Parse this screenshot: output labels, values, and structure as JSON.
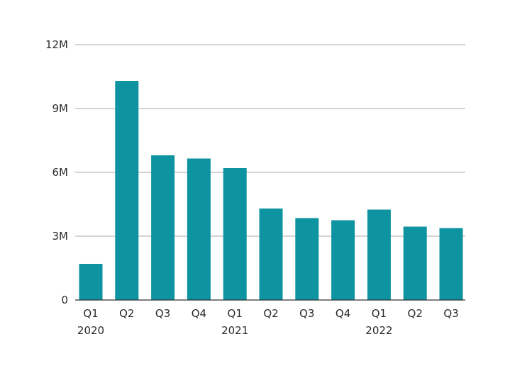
{
  "chart_data": {
    "type": "bar",
    "categories": [
      "Q1",
      "Q2",
      "Q3",
      "Q4",
      "Q1",
      "Q2",
      "Q3",
      "Q4",
      "Q1",
      "Q2",
      "Q3"
    ],
    "year_labels": [
      {
        "index": 0,
        "label": "2020"
      },
      {
        "index": 4,
        "label": "2021"
      },
      {
        "index": 8,
        "label": "2022"
      }
    ],
    "series": [
      {
        "values": [
          1.7,
          10.3,
          6.8,
          6.65,
          6.2,
          4.3,
          3.85,
          3.75,
          4.25,
          3.45,
          3.38
        ]
      }
    ],
    "ylim": [
      0,
      12
    ],
    "yticks": [
      0,
      3,
      6,
      9,
      12
    ],
    "ytick_labels": [
      "0",
      "3M",
      "6M",
      "9M",
      "12M"
    ],
    "value_unit": "millions",
    "grid": true,
    "legend": "none",
    "title": "",
    "xlabel": "",
    "ylabel": ""
  },
  "colors": {
    "bar": "#0e93a1",
    "grid": "#a9a9a9",
    "axis": "#333333",
    "text": "#2b2b2b"
  }
}
